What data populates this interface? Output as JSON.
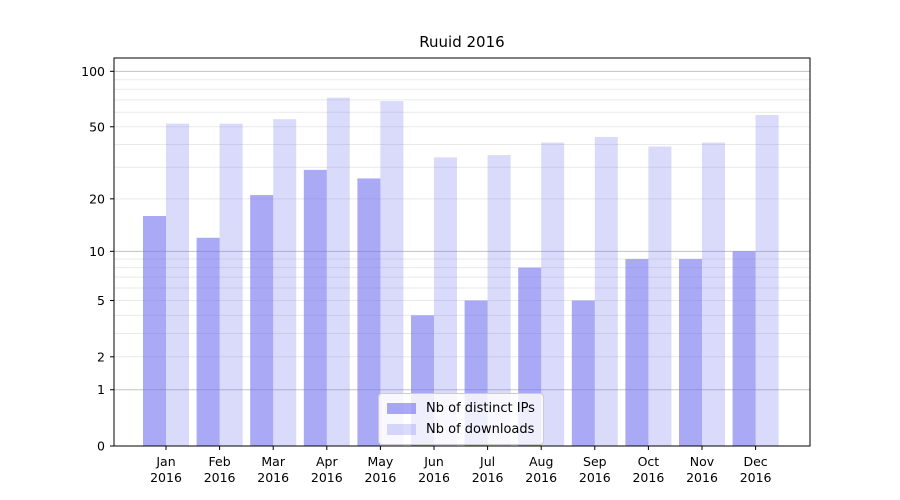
{
  "title": "Ruuid 2016",
  "legend": {
    "items": [
      {
        "label": "Nb of distinct IPs"
      },
      {
        "label": "Nb of downloads"
      }
    ]
  },
  "colors": {
    "bar_base": "#7070ee",
    "ips_bar": "rgba(112,112,238,0.60)",
    "downloads_bar": "rgba(112,112,238,0.26)",
    "grid_major": "#c3c3c3",
    "grid_minor": "#e9e9e9",
    "axis": "#000000"
  },
  "chart_data": {
    "type": "bar",
    "title": "Ruuid 2016",
    "scale": "log1p",
    "grid": "on",
    "legend_position": "lower center",
    "categories": [
      "Jan 2016",
      "Feb 2016",
      "Mar 2016",
      "Apr 2016",
      "May 2016",
      "Jun 2016",
      "Jul 2016",
      "Aug 2016",
      "Sep 2016",
      "Oct 2016",
      "Nov 2016",
      "Dec 2016"
    ],
    "x_tick_month": [
      "Jan",
      "Feb",
      "Mar",
      "Apr",
      "May",
      "Jun",
      "Jul",
      "Aug",
      "Sep",
      "Oct",
      "Nov",
      "Dec"
    ],
    "x_tick_year": "2016",
    "series": [
      {
        "name": "Nb of distinct IPs",
        "color": "rgba(112,112,238,0.60)",
        "values": [
          16,
          12,
          21,
          29,
          26,
          4,
          5,
          8,
          5,
          9,
          9,
          10
        ]
      },
      {
        "name": "Nb of downloads",
        "color": "rgba(112,112,238,0.26)",
        "values": [
          52,
          52,
          55,
          72,
          69,
          34,
          35,
          41,
          44,
          39,
          41,
          58
        ]
      }
    ],
    "xlabel": "",
    "ylabel": "",
    "yticks": [
      0,
      1,
      2,
      5,
      10,
      20,
      50,
      100
    ],
    "ylim": [
      0,
      118
    ],
    "grid_major_values": [
      1,
      10,
      100
    ],
    "grid_minor_values": [
      2,
      3,
      4,
      5,
      6,
      7,
      8,
      9,
      20,
      30,
      40,
      50,
      60,
      70,
      80,
      90
    ]
  }
}
